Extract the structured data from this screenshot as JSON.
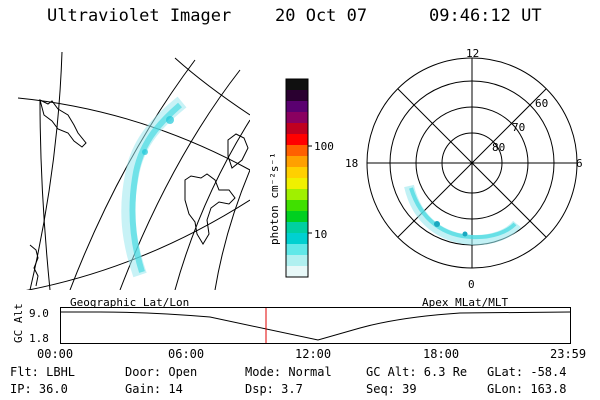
{
  "header": {
    "title": "Ultraviolet Imager",
    "date": "20 Oct 07",
    "time": "09:46:12 UT"
  },
  "colorbar": {
    "unit_label": "photon cm⁻²s⁻¹",
    "ticks": [
      "100",
      "10"
    ],
    "colors": [
      "#101010",
      "#2a0030",
      "#5a0070",
      "#8a0060",
      "#c00020",
      "#ff0000",
      "#ff6000",
      "#ffa000",
      "#ffd000",
      "#f0f000",
      "#a0f000",
      "#40e000",
      "#00d020",
      "#00d0a0",
      "#00d0d0",
      "#60e8e8",
      "#b0f0f0",
      "#e8f8f8"
    ]
  },
  "geo_map": {
    "label": "Geographic Lat/Lon",
    "aurora_color": "#40d8e0"
  },
  "polar_plot": {
    "label": "Apex MLat/MLT",
    "mlt_labels": {
      "top": "12",
      "left": "18",
      "right": "6",
      "bottom": "0"
    },
    "lat_labels": [
      "60",
      "70",
      "80"
    ]
  },
  "altitude_chart": {
    "ylabel": "GC Alt",
    "y_ticks": [
      "9.0",
      "1.8"
    ],
    "x_ticks": [
      "00:00",
      "06:00",
      "12:00",
      "18:00",
      "23:59"
    ],
    "current_time_marker_color": "#e00000"
  },
  "status": {
    "filter": "Flt: LBHL",
    "ip": "IP: 36.0",
    "door": "Door: Open",
    "gain": "Gain: 14",
    "mode": "Mode: Normal",
    "dsp": "Dsp:     3.7",
    "gc_alt": "GC Alt: 6.3 Re",
    "seq": "Seq: 39",
    "glat": "GLat: -58.4",
    "glon": "GLon: 163.8"
  }
}
